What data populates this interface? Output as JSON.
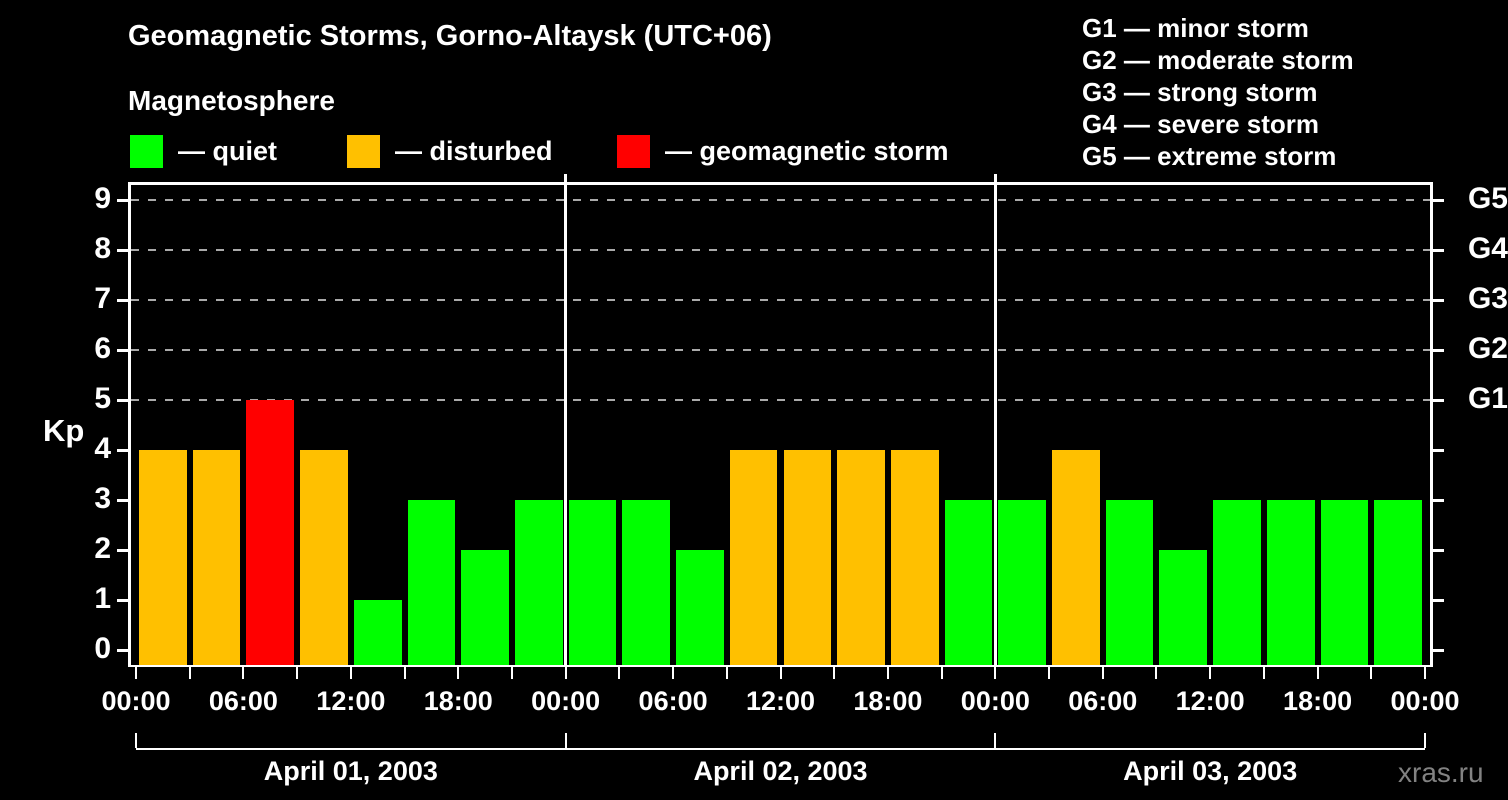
{
  "header": {
    "title": "Geomagnetic Storms, Gorno-Altaysk (UTC+06)",
    "subtitle": "Magnetosphere"
  },
  "activity_legend": [
    {
      "name": "quiet",
      "label": "— quiet",
      "color": "#00ff00"
    },
    {
      "name": "disturbed",
      "label": "— disturbed",
      "color": "#ffc000"
    },
    {
      "name": "storm",
      "label": "— geomagnetic storm",
      "color": "#ff0000"
    }
  ],
  "storm_scale_legend": [
    "G1 — minor storm",
    "G2 — moderate storm",
    "G3 — strong storm",
    "G4 — severe storm",
    "G5 — extreme storm"
  ],
  "watermark": "xras.ru",
  "chart_data": {
    "type": "bar",
    "title": "Geomagnetic Storms, Gorno-Altaysk (UTC+06)",
    "ylabel": "Kp",
    "ylim": [
      0,
      9
    ],
    "y_ticks": [
      0,
      1,
      2,
      3,
      4,
      5,
      6,
      7,
      8,
      9
    ],
    "gridlines_at": [
      5,
      6,
      7,
      8,
      9
    ],
    "grid_style": "dashed",
    "right_axis_labels": [
      {
        "kp": 5,
        "label": "G1"
      },
      {
        "kp": 6,
        "label": "G2"
      },
      {
        "kp": 7,
        "label": "G3"
      },
      {
        "kp": 8,
        "label": "G4"
      },
      {
        "kp": 9,
        "label": "G5"
      }
    ],
    "bar_interval_hours": 3,
    "x_tick_every_hours": 3,
    "x_label_every_hours": 6,
    "x_axis_labels": [
      "00:00",
      "06:00",
      "12:00",
      "18:00",
      "00:00",
      "06:00",
      "12:00",
      "18:00",
      "00:00",
      "06:00",
      "12:00",
      "18:00",
      "00:00"
    ],
    "days": [
      {
        "date": "April 01, 2003",
        "kp_values": [
          4,
          4,
          5,
          4,
          1,
          3,
          2,
          3
        ]
      },
      {
        "date": "April 02, 2003",
        "kp_values": [
          3,
          3,
          2,
          4,
          4,
          4,
          4,
          3
        ]
      },
      {
        "date": "April 03, 2003",
        "kp_values": [
          3,
          4,
          3,
          2,
          3,
          3,
          3,
          3
        ]
      }
    ],
    "color_rule": {
      "quiet_max_kp": 3,
      "disturbed_kp": 4,
      "storm_min_kp": 5
    },
    "colors": {
      "quiet": "#00ff00",
      "disturbed": "#ffc000",
      "storm": "#ff0000",
      "grid": "#aaaaaa",
      "axis": "#ffffff",
      "background": "#000000"
    },
    "legend_position": "top-left and top-right"
  }
}
